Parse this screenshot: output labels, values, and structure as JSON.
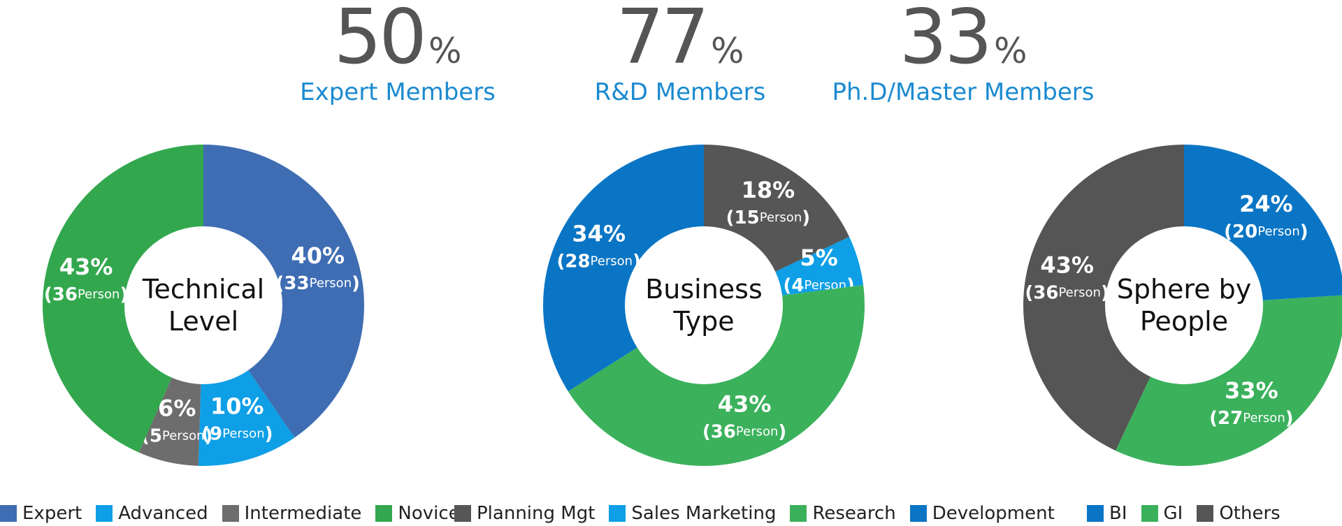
{
  "stats": [
    {
      "value": 50,
      "unit": "%",
      "label": "Expert Members"
    },
    {
      "value": 77,
      "unit": "%",
      "label": "R&D Members"
    },
    {
      "value": 33,
      "unit": "%",
      "label": "Ph.D/Master Members"
    }
  ],
  "chart_data": [
    {
      "type": "pie",
      "title": "Technical Level",
      "categories": [
        "Expert",
        "Advanced",
        "Intermediate",
        "Novice"
      ],
      "values": [
        40,
        10,
        6,
        43
      ],
      "value_labels": [
        "40%",
        "10%",
        "6%",
        "43%"
      ],
      "counts": [
        33,
        9,
        5,
        36
      ],
      "count_open": "(",
      "count_unit": "Person",
      "count_close": ")",
      "colors": [
        "#3f6db3",
        "#0e9fe6",
        "#6d6d6d",
        "#33a74e"
      ]
    },
    {
      "type": "pie",
      "title": "Business Type",
      "categories": [
        "Planning Mgt",
        "Sales Marketing",
        "Research",
        "Development"
      ],
      "values": [
        18,
        5,
        43,
        34
      ],
      "value_labels": [
        "18%",
        "5%",
        "43%",
        "34%"
      ],
      "counts": [
        15,
        4,
        36,
        28
      ],
      "count_open": "(",
      "count_unit": "Person",
      "count_close": ")",
      "colors": [
        "#565656",
        "#0e9fe6",
        "#3bb15c",
        "#0a75c4"
      ]
    },
    {
      "type": "pie",
      "title": "Sphere by People",
      "categories": [
        "BI",
        "GI",
        "Others"
      ],
      "values": [
        24,
        33,
        43
      ],
      "value_labels": [
        "24%",
        "33%",
        "43%"
      ],
      "counts": [
        20,
        27,
        36
      ],
      "count_open": "(",
      "count_unit": "Person",
      "count_close": ")",
      "colors": [
        "#0a75c4",
        "#3bb15c",
        "#555555"
      ]
    }
  ]
}
